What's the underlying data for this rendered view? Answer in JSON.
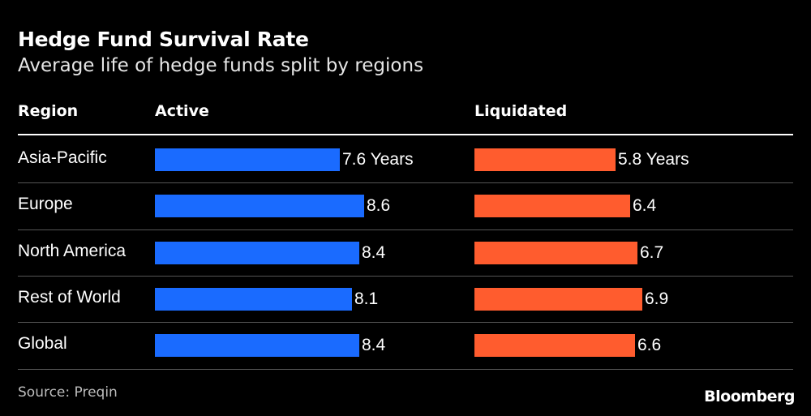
{
  "chart_data": {
    "type": "bar",
    "title": "Hedge Fund Survival Rate",
    "subtitle": "Average life of hedge funds split by regions",
    "column_headers": {
      "region": "Region",
      "active": "Active",
      "liquidated": "Liquidated"
    },
    "categories": [
      "Asia-Pacific",
      "Europe",
      "North America",
      "Rest of World",
      "Global"
    ],
    "series": [
      {
        "name": "Active",
        "values": [
          7.6,
          8.6,
          8.4,
          8.1,
          8.4
        ],
        "labels": [
          "7.6 Years",
          "8.6",
          "8.4",
          "8.1",
          "8.4"
        ],
        "color": "#1a6bff"
      },
      {
        "name": "Liquidated",
        "values": [
          5.8,
          6.4,
          6.7,
          6.9,
          6.6
        ],
        "labels": [
          "5.8 Years",
          "6.4",
          "6.7",
          "6.9",
          "6.6"
        ],
        "color": "#ff5c2e"
      }
    ],
    "xlim": [
      0,
      10
    ],
    "grid": false,
    "orientation": "horizontal"
  },
  "footer": {
    "source": "Source: Preqin",
    "brand": "Bloomberg"
  }
}
